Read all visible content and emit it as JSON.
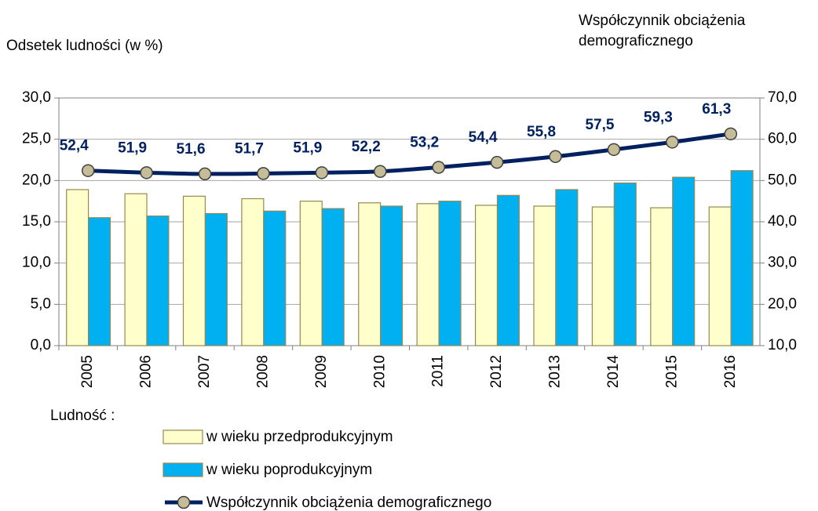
{
  "chart_data": {
    "type": "bar_line",
    "y_label": "Odsetek ludności (w %)",
    "y2_label": "Współczynnik obciążenia demograficznego",
    "legend_title": "Ludność :",
    "categories": [
      "2005",
      "2006",
      "2007",
      "2008",
      "2009",
      "2010",
      "2011",
      "2012",
      "2013",
      "2014",
      "2015",
      "2016"
    ],
    "series": [
      {
        "name": "w wieku przedprodukcyjnym",
        "type": "bar",
        "color": "#ffffcc",
        "values": [
          18.9,
          18.4,
          18.1,
          17.8,
          17.5,
          17.3,
          17.2,
          17.0,
          16.9,
          16.8,
          16.7,
          16.8
        ]
      },
      {
        "name": "w wieku poprodukcyjnym",
        "type": "bar",
        "color": "#00b0f0",
        "values": [
          15.5,
          15.7,
          16.0,
          16.3,
          16.6,
          16.9,
          17.5,
          18.2,
          18.9,
          19.7,
          20.4,
          21.2
        ]
      },
      {
        "name": "Współczynnik obciążenia demograficznego",
        "type": "line",
        "axis": "y2",
        "color": "#002060",
        "values": [
          52.4,
          51.9,
          51.6,
          51.7,
          51.9,
          52.2,
          53.2,
          54.4,
          55.8,
          57.5,
          59.3,
          61.3
        ],
        "value_labels": [
          "52,4",
          "51,9",
          "51,6",
          "51,7",
          "51,9",
          "52,2",
          "53,2",
          "54,4",
          "55,8",
          "57,5",
          "59,3",
          "61,3"
        ]
      }
    ],
    "ylim": [
      0,
      30
    ],
    "yticks": [
      {
        "value": 0,
        "label": "0,0"
      },
      {
        "value": 5,
        "label": "5,0"
      },
      {
        "value": 10,
        "label": "10,0"
      },
      {
        "value": 15,
        "label": "15,0"
      },
      {
        "value": 20,
        "label": "20,0"
      },
      {
        "value": 25,
        "label": "25,0"
      },
      {
        "value": 30,
        "label": "30,0"
      }
    ],
    "y2lim": [
      10,
      70
    ],
    "y2ticks": [
      {
        "value": 10,
        "label": "10,0"
      },
      {
        "value": 20,
        "label": "20,0"
      },
      {
        "value": 30,
        "label": "30,0"
      },
      {
        "value": 40,
        "label": "40,0"
      },
      {
        "value": 50,
        "label": "50,0"
      },
      {
        "value": 60,
        "label": "60,0"
      },
      {
        "value": 70,
        "label": "70,0"
      }
    ],
    "grid": true
  }
}
